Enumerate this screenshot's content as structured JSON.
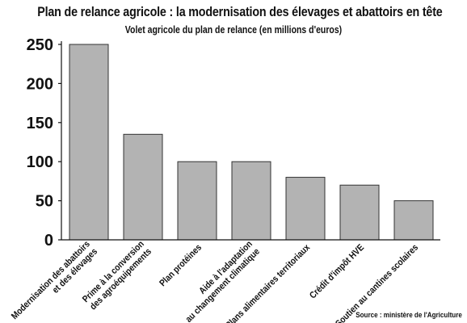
{
  "chart_data": {
    "type": "bar",
    "title": "Plan de relance agricole : la modernisation des élevages et abattoirs en tête",
    "subtitle": "Volet agricole du plan de relance (en millions d'euros)",
    "categories": [
      [
        "Modernisation des abattoirs",
        "et des élevages"
      ],
      [
        "Prime à la conversion",
        "des agroéquipements"
      ],
      [
        "Plan protéines"
      ],
      [
        "Aide à l'adaptation",
        "au changement climatique"
      ],
      [
        "Plans alimentaires territoriaux"
      ],
      [
        "Crédit d'impôt HVE"
      ],
      [
        "Soutien au cantines scolaires"
      ]
    ],
    "values": [
      250,
      135,
      100,
      100,
      80,
      70,
      50
    ],
    "yticks": [
      0,
      50,
      100,
      150,
      200,
      250
    ],
    "ylim": [
      0,
      250
    ],
    "grid": false,
    "bar_color": "#b3b3b3",
    "bar_stroke": "#333333",
    "source": "Source : ministère de l'Agriculture"
  }
}
